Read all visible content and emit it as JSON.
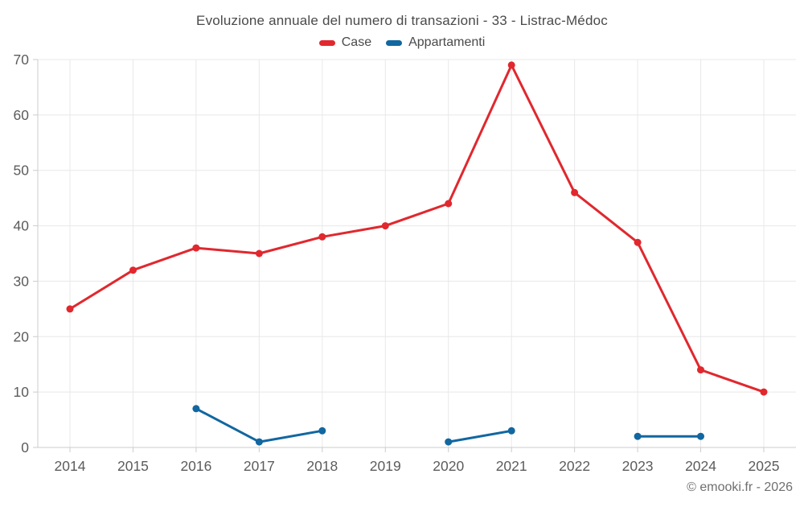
{
  "header": {
    "title": "Evoluzione annuale del numero di transazioni - 33 - Listrac-Médoc"
  },
  "legend": {
    "items": [
      {
        "label": "Case",
        "color": "#e0282e"
      },
      {
        "label": "Appartamenti",
        "color": "#1167a0"
      }
    ]
  },
  "chart_data": {
    "type": "line",
    "title": "Evoluzione annuale del numero di transazioni - 33 - Listrac-Médoc",
    "categories": [
      "2014",
      "2015",
      "2016",
      "2017",
      "2018",
      "2019",
      "2020",
      "2021",
      "2022",
      "2023",
      "2024",
      "2025"
    ],
    "series": [
      {
        "name": "Case",
        "color": "#e0282e",
        "values": [
          25,
          32,
          36,
          35,
          38,
          40,
          44,
          69,
          46,
          37,
          14,
          10
        ]
      },
      {
        "name": "Appartamenti",
        "color": "#1167a0",
        "values": [
          null,
          null,
          7,
          1,
          3,
          null,
          1,
          3,
          null,
          2,
          2,
          null
        ]
      }
    ],
    "xlabel": "",
    "ylabel": "",
    "ylim": [
      0,
      70
    ],
    "yticks": [
      0,
      10,
      20,
      30,
      40,
      50,
      60,
      70
    ],
    "grid": true,
    "legend_position": "top",
    "colors": {
      "gridline": "#e8e8e8",
      "axis": "#cccccc",
      "tick_label": "#5c5c5c"
    }
  },
  "footer": {
    "copyright": "© emooki.fr - 2026"
  }
}
